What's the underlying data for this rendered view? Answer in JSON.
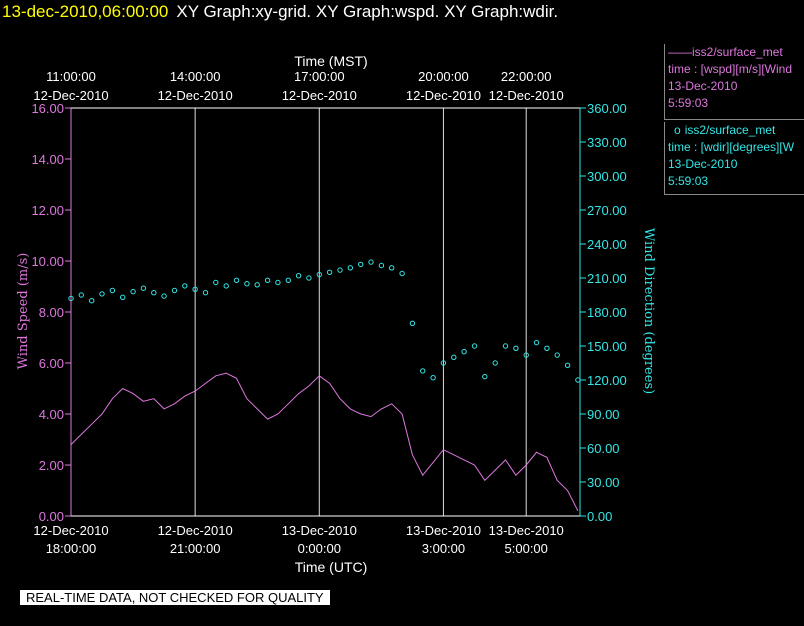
{
  "header": {
    "timestamp": "13-dec-2010,06:00:00",
    "titles": "XY Graph:xy-grid.  XY Graph:wspd.  XY Graph:wdir."
  },
  "legend": [
    {
      "marker": "——",
      "name": "iss2/surface_met",
      "var": "time : [wspd][m/s][Wind",
      "date": "13-Dec-2010",
      "time": "5:59:03",
      "color": "#dd77dd"
    },
    {
      "marker": "o",
      "name": "iss2/surface_met",
      "var": "time : [wdir][degrees][W",
      "date": "13-Dec-2010",
      "time": "5:59:03",
      "color": "#33e6e6"
    }
  ],
  "footer": "REAL-TIME DATA, NOT CHECKED FOR QUALITY",
  "chart_data": {
    "type": "line",
    "top_axis_title": "Time (MST)",
    "bottom_axis_title": "Time (UTC)",
    "ylabel_left": "Wind Speed (m/s)",
    "ylabel_right": "Wind Direction (degrees)",
    "ylim_left": [
      0,
      16
    ],
    "ylim_right": [
      0,
      360
    ],
    "xlim_hours": [
      0,
      12.3
    ],
    "grid": "vertical",
    "yticks_left": [
      "0.00",
      "2.00",
      "4.00",
      "6.00",
      "8.00",
      "10.00",
      "12.00",
      "14.00",
      "16.00"
    ],
    "yticks_right": [
      "0.00",
      "30.00",
      "60.00",
      "90.00",
      "120.00",
      "150.00",
      "180.00",
      "210.00",
      "240.00",
      "270.00",
      "300.00",
      "330.00",
      "360.00"
    ],
    "top_ticks": [
      {
        "t": 0,
        "l1": "11:00:00",
        "l2": "12-Dec-2010"
      },
      {
        "t": 3,
        "l1": "14:00:00",
        "l2": "12-Dec-2010"
      },
      {
        "t": 6,
        "l1": "17:00:00",
        "l2": "12-Dec-2010"
      },
      {
        "t": 9,
        "l1": "20:00:00",
        "l2": "12-Dec-2010"
      },
      {
        "t": 11,
        "l1": "22:00:00",
        "l2": "12-Dec-2010"
      }
    ],
    "bottom_ticks": [
      {
        "t": 0,
        "l1": "12-Dec-2010",
        "l2": "18:00:00"
      },
      {
        "t": 3,
        "l1": "12-Dec-2010",
        "l2": "21:00:00"
      },
      {
        "t": 6,
        "l1": "13-Dec-2010",
        "l2": "0:00:00"
      },
      {
        "t": 9,
        "l1": "13-Dec-2010",
        "l2": "3:00:00"
      },
      {
        "t": 11,
        "l1": "13-Dec-2010",
        "l2": "5:00:00"
      }
    ],
    "series": [
      {
        "name": "iss2/surface_met time : [wspd][m/s]",
        "axis": "left",
        "color": "#dd77dd",
        "style": "line",
        "x": [
          0,
          0.25,
          0.5,
          0.75,
          1.0,
          1.25,
          1.5,
          1.75,
          2.0,
          2.25,
          2.5,
          2.75,
          3.0,
          3.25,
          3.5,
          3.75,
          4.0,
          4.25,
          4.5,
          4.75,
          5.0,
          5.25,
          5.5,
          5.75,
          6.0,
          6.25,
          6.5,
          6.75,
          7.0,
          7.25,
          7.5,
          7.75,
          8.0,
          8.25,
          8.5,
          8.75,
          9.0,
          9.25,
          9.5,
          9.75,
          10.0,
          10.25,
          10.5,
          10.75,
          11.0,
          11.25,
          11.5,
          11.75,
          12.0,
          12.25
        ],
        "values": [
          2.8,
          3.2,
          3.6,
          4.0,
          4.6,
          5.0,
          4.8,
          4.5,
          4.6,
          4.2,
          4.4,
          4.7,
          4.9,
          5.2,
          5.5,
          5.6,
          5.4,
          4.6,
          4.2,
          3.8,
          4.0,
          4.4,
          4.8,
          5.1,
          5.5,
          5.2,
          4.6,
          4.2,
          4.0,
          3.9,
          4.2,
          4.4,
          4.0,
          2.4,
          1.6,
          2.1,
          2.6,
          2.4,
          2.2,
          2.0,
          1.4,
          1.8,
          2.2,
          1.6,
          2.0,
          2.5,
          2.3,
          1.4,
          1.0,
          0.2
        ]
      },
      {
        "name": "iss2/surface_met time : [wdir][degrees]",
        "axis": "right",
        "color": "#33e6e6",
        "style": "markers",
        "x": [
          0,
          0.25,
          0.5,
          0.75,
          1.0,
          1.25,
          1.5,
          1.75,
          2.0,
          2.25,
          2.5,
          2.75,
          3.0,
          3.25,
          3.5,
          3.75,
          4.0,
          4.25,
          4.5,
          4.75,
          5.0,
          5.25,
          5.5,
          5.75,
          6.0,
          6.25,
          6.5,
          6.75,
          7.0,
          7.25,
          7.5,
          7.75,
          8.0,
          8.25,
          8.5,
          8.75,
          9.0,
          9.25,
          9.5,
          9.75,
          10.0,
          10.25,
          10.5,
          10.75,
          11.0,
          11.25,
          11.5,
          11.75,
          12.0,
          12.25
        ],
        "values": [
          192,
          195,
          190,
          196,
          199,
          193,
          198,
          201,
          197,
          194,
          199,
          203,
          200,
          197,
          206,
          203,
          208,
          205,
          204,
          208,
          206,
          208,
          212,
          210,
          213,
          215,
          217,
          219,
          222,
          224,
          221,
          219,
          214,
          170,
          128,
          122,
          135,
          140,
          145,
          150,
          123,
          135,
          150,
          148,
          142,
          153,
          148,
          142,
          133,
          120
        ]
      }
    ]
  }
}
